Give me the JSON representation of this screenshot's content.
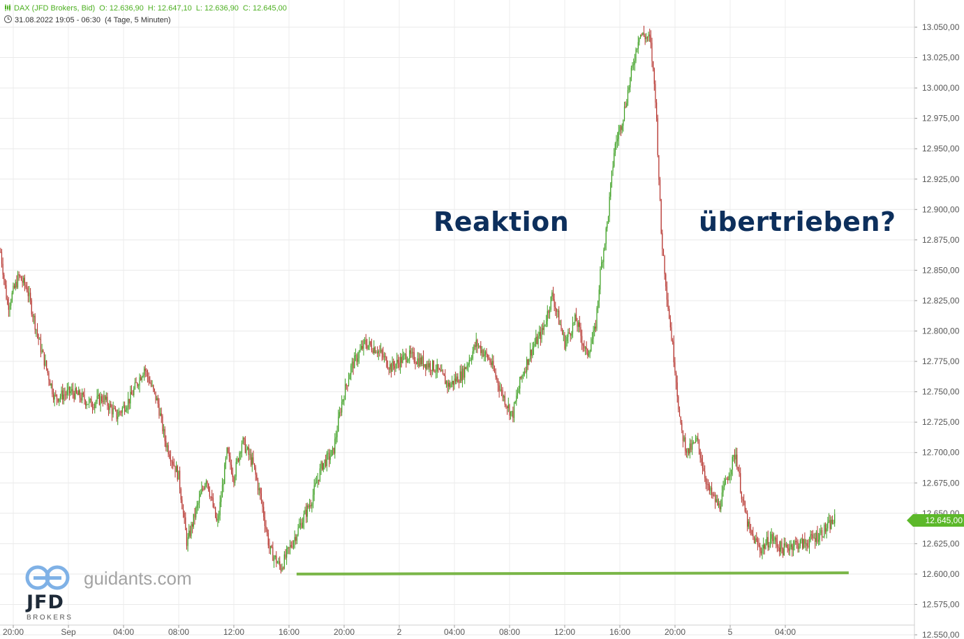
{
  "header": {
    "instrument": "DAX (JFD Brokers, Bid)",
    "open": "O: 12.636,90",
    "high": "H: 12.647,10",
    "low": "L: 12.636,90",
    "close": "C: 12.645,00",
    "range": "31.08.2022 19:05 - 06:30",
    "period": "(4 Tage, 5 Minuten)"
  },
  "annotations": {
    "left": "Reaktion",
    "right": "übertrieben?"
  },
  "branding": {
    "site": "guidants.com",
    "logo": "JFD",
    "logo_sub": "BROKERS"
  },
  "last_price_label": "12.645,00",
  "colors": {
    "up": "#3a9e1f",
    "down": "#b5312b",
    "support": "#7ab648",
    "annotation": "#0d2f5c",
    "last_price": "#5cb82a"
  },
  "chart_data": {
    "type": "candlestick",
    "title": "DAX (JFD Brokers, Bid)",
    "interval": "5 Minuten",
    "ylim": [
      12550,
      13060
    ],
    "y_ticks": [
      "12.550,00",
      "12.575,00",
      "12.600,00",
      "12.625,00",
      "12.650,00",
      "12.675,00",
      "12.700,00",
      "12.725,00",
      "12.750,00",
      "12.775,00",
      "12.800,00",
      "12.825,00",
      "12.850,00",
      "12.875,00",
      "12.900,00",
      "12.925,00",
      "12.950,00",
      "12.975,00",
      "13.000,00",
      "13.025,00",
      "13.050,00"
    ],
    "y_tick_values": [
      12550,
      12575,
      12600,
      12625,
      12650,
      12675,
      12700,
      12725,
      12750,
      12775,
      12800,
      12825,
      12850,
      12875,
      12900,
      12925,
      12950,
      12975,
      13000,
      13025,
      13050
    ],
    "x_ticks": [
      "20:00",
      "Sep",
      "04:00",
      "08:00",
      "12:00",
      "16:00",
      "20:00",
      "2",
      "04:00",
      "08:00",
      "12:00",
      "16:00",
      "20:00",
      "5",
      "04:00"
    ],
    "x_tick_hours": [
      20,
      24,
      28,
      32,
      36,
      40,
      44,
      48,
      52,
      56,
      60,
      64,
      68,
      72,
      76
    ],
    "x_range_hours": [
      19.08,
      81.0
    ],
    "path_hours": [
      19.08,
      19.6,
      20.4,
      21.0,
      21.9,
      23.0,
      24.2,
      25.0,
      25.6,
      26.5,
      27.5,
      28.5,
      29.5,
      30.5,
      31.0,
      32.0,
      32.6,
      33.2,
      34.0,
      34.8,
      35.5,
      36.0,
      36.6,
      37.4,
      38.0,
      38.6,
      39.4,
      40.4,
      40.8,
      41.6,
      42.4,
      43.2,
      43.8,
      44.5,
      45.5,
      46.4,
      47.4,
      48.6,
      49.6,
      50.6,
      51.6,
      52.6,
      53.6,
      54.6,
      55.4,
      56.2,
      56.8,
      57.6,
      58.4,
      59.1,
      60.0,
      60.8,
      61.6,
      62.2,
      62.6,
      63.1,
      63.6,
      64.2,
      64.8,
      65.4,
      66.2,
      66.6,
      67.0,
      67.5,
      68.0,
      68.4,
      68.9,
      69.6,
      70.4,
      71.2,
      71.8,
      72.4,
      72.9,
      73.4,
      74.2,
      75.0,
      75.8,
      76.6,
      77.4,
      78.4,
      79.2,
      79.6
    ],
    "path_values": [
      12865,
      12820,
      12845,
      12835,
      12790,
      12745,
      12750,
      12745,
      12740,
      12745,
      12730,
      12745,
      12770,
      12740,
      12710,
      12680,
      12625,
      12650,
      12680,
      12640,
      12700,
      12680,
      12710,
      12690,
      12660,
      12620,
      12605,
      12630,
      12640,
      12660,
      12690,
      12700,
      12740,
      12770,
      12790,
      12785,
      12770,
      12780,
      12775,
      12770,
      12755,
      12765,
      12790,
      12775,
      12750,
      12730,
      12760,
      12785,
      12800,
      12830,
      12790,
      12810,
      12780,
      12800,
      12850,
      12890,
      12950,
      12975,
      13010,
      13045,
      13040,
      12990,
      12880,
      12820,
      12770,
      12720,
      12700,
      12710,
      12670,
      12655,
      12680,
      12700,
      12660,
      12635,
      12620,
      12630,
      12620,
      12625,
      12625,
      12632,
      12640,
      12645
    ],
    "support_line": {
      "y_start": 12600,
      "y_end": 12601,
      "x_start_hours": 40.55,
      "x_end_hours": 80.6
    },
    "last_price": 12645.0
  }
}
